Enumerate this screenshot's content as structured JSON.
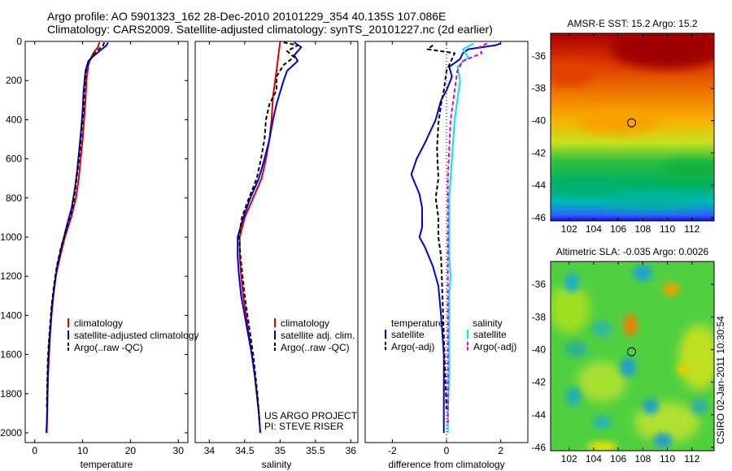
{
  "header": {
    "title_line1": "Argo profile: AO 5901323_162 28-Dec-2010 20101229_354 40.135S 107.086E",
    "title_line2": "Climatology: CARS2009. Satellite-adjusted climatology: synTS_20101227.nc (2d earlier)"
  },
  "side_label": "CSIRO 02-Jan-2011 10:30:54",
  "colors": {
    "red": "#e00000",
    "blue": "#0000e0",
    "black": "#000000",
    "cyan": "#00e8e8",
    "magenta": "#e000e0"
  },
  "chart_data": [
    {
      "type": "line",
      "id": "temperature",
      "xlabel": "temperature",
      "xlim": [
        -2,
        32
      ],
      "xticks": [
        0,
        10,
        20,
        30
      ],
      "ylim": [
        2050,
        0
      ],
      "yticks": [
        0,
        200,
        400,
        600,
        800,
        1000,
        1200,
        1400,
        1600,
        1800,
        2000
      ],
      "legend": [
        "climatology",
        "satellite-adjusted climatology",
        "Argo(..raw -QC)"
      ],
      "series": [
        {
          "name": "climatology",
          "color": "red",
          "dash": "",
          "points": [
            [
              13.5,
              5
            ],
            [
              13.2,
              30
            ],
            [
              12.5,
              50
            ],
            [
              11.8,
              80
            ],
            [
              11.2,
              120
            ],
            [
              10.8,
              200
            ],
            [
              10.6,
              300
            ],
            [
              10.3,
              400
            ],
            [
              10.0,
              500
            ],
            [
              9.6,
              600
            ],
            [
              9.2,
              700
            ],
            [
              8.6,
              800
            ],
            [
              7.6,
              900
            ],
            [
              6.3,
              1000
            ],
            [
              5.3,
              1100
            ],
            [
              4.4,
              1200
            ],
            [
              3.9,
              1300
            ],
            [
              3.5,
              1400
            ],
            [
              3.2,
              1500
            ],
            [
              3.0,
              1600
            ],
            [
              2.8,
              1700
            ],
            [
              2.7,
              1800
            ],
            [
              2.6,
              1900
            ],
            [
              2.5,
              2000
            ]
          ]
        },
        {
          "name": "satellite-adjusted climatology",
          "color": "blue",
          "dash": "",
          "points": [
            [
              15.3,
              5
            ],
            [
              15.0,
              20
            ],
            [
              14.0,
              40
            ],
            [
              12.5,
              70
            ],
            [
              11.2,
              100
            ],
            [
              10.6,
              150
            ],
            [
              10.2,
              250
            ],
            [
              10.0,
              350
            ],
            [
              9.7,
              450
            ],
            [
              9.3,
              550
            ],
            [
              8.9,
              650
            ],
            [
              8.4,
              750
            ],
            [
              7.7,
              850
            ],
            [
              6.6,
              950
            ],
            [
              5.6,
              1050
            ],
            [
              4.7,
              1150
            ],
            [
              4.1,
              1250
            ],
            [
              3.6,
              1350
            ],
            [
              3.3,
              1450
            ],
            [
              3.0,
              1550
            ],
            [
              2.8,
              1650
            ],
            [
              2.7,
              1750
            ],
            [
              2.6,
              1850
            ],
            [
              2.5,
              1950
            ],
            [
              2.4,
              2000
            ]
          ]
        },
        {
          "name": "Argo(..raw -QC)",
          "color": "black",
          "dash": "5,3",
          "points": [
            [
              14.5,
              5
            ],
            [
              14.3,
              20
            ],
            [
              13.4,
              40
            ],
            [
              12.2,
              70
            ],
            [
              11.4,
              100
            ],
            [
              10.7,
              150
            ],
            [
              10.4,
              250
            ],
            [
              10.2,
              350
            ],
            [
              9.8,
              450
            ],
            [
              9.5,
              550
            ],
            [
              9.0,
              650
            ],
            [
              8.5,
              750
            ],
            [
              7.9,
              850
            ],
            [
              6.8,
              950
            ],
            [
              5.5,
              1050
            ],
            [
              4.6,
              1150
            ],
            [
              4.0,
              1250
            ],
            [
              3.5,
              1350
            ],
            [
              3.2,
              1450
            ],
            [
              2.9,
              1550
            ],
            [
              2.7,
              1650
            ],
            [
              2.6,
              1750
            ],
            [
              2.5,
              1880
            ]
          ]
        }
      ]
    },
    {
      "type": "line",
      "id": "salinity",
      "xlabel": "salinity",
      "xlim": [
        33.8,
        36.1
      ],
      "xticks": [
        34,
        34.5,
        35,
        35.5,
        36
      ],
      "ylim": [
        2050,
        0
      ],
      "yticks": [],
      "legend": [
        "climatology",
        "satellite adj. clim.",
        "Argo(..raw -QC)"
      ],
      "annotation": [
        "US ARGO PROJECT",
        "PI: STEVE RISER"
      ],
      "series": [
        {
          "name": "climatology",
          "color": "red",
          "dash": "",
          "points": [
            [
              35.0,
              5
            ],
            [
              34.98,
              60
            ],
            [
              34.95,
              150
            ],
            [
              34.9,
              280
            ],
            [
              34.88,
              400
            ],
            [
              34.85,
              500
            ],
            [
              34.8,
              600
            ],
            [
              34.74,
              700
            ],
            [
              34.62,
              800
            ],
            [
              34.5,
              900
            ],
            [
              34.43,
              1000
            ],
            [
              34.43,
              1100
            ],
            [
              34.45,
              1200
            ],
            [
              34.48,
              1300
            ],
            [
              34.52,
              1400
            ],
            [
              34.56,
              1500
            ],
            [
              34.6,
              1600
            ],
            [
              34.64,
              1700
            ],
            [
              34.67,
              1800
            ],
            [
              34.7,
              1900
            ],
            [
              34.72,
              2000
            ]
          ]
        },
        {
          "name": "satellite adj. clim.",
          "color": "blue",
          "dash": "",
          "points": [
            [
              35.2,
              5
            ],
            [
              35.3,
              30
            ],
            [
              35.2,
              70
            ],
            [
              35.25,
              100
            ],
            [
              35.1,
              150
            ],
            [
              35.05,
              200
            ],
            [
              35.0,
              260
            ],
            [
              34.95,
              320
            ],
            [
              34.9,
              400
            ],
            [
              34.85,
              500
            ],
            [
              34.78,
              600
            ],
            [
              34.7,
              700
            ],
            [
              34.58,
              800
            ],
            [
              34.48,
              900
            ],
            [
              34.4,
              1000
            ],
            [
              34.4,
              1100
            ],
            [
              34.42,
              1200
            ],
            [
              34.45,
              1300
            ],
            [
              34.5,
              1400
            ],
            [
              34.55,
              1500
            ],
            [
              34.6,
              1600
            ],
            [
              34.64,
              1700
            ],
            [
              34.67,
              1800
            ],
            [
              34.7,
              1900
            ],
            [
              34.72,
              2000
            ]
          ]
        },
        {
          "name": "Argo(..raw -QC)",
          "color": "black",
          "dash": "5,3",
          "points": [
            [
              35.05,
              5
            ],
            [
              35.25,
              20
            ],
            [
              35.1,
              50
            ],
            [
              35.2,
              80
            ],
            [
              35.05,
              120
            ],
            [
              34.95,
              180
            ],
            [
              34.95,
              250
            ],
            [
              34.85,
              320
            ],
            [
              34.8,
              400
            ],
            [
              34.78,
              500
            ],
            [
              34.73,
              600
            ],
            [
              34.67,
              700
            ],
            [
              34.56,
              800
            ],
            [
              34.46,
              900
            ],
            [
              34.42,
              1000
            ],
            [
              34.44,
              1100
            ],
            [
              34.47,
              1200
            ],
            [
              34.5,
              1300
            ],
            [
              34.54,
              1400
            ],
            [
              34.58,
              1500
            ],
            [
              34.62,
              1600
            ],
            [
              34.65,
              1700
            ],
            [
              34.68,
              1800
            ],
            [
              34.7,
              1900
            ],
            [
              34.71,
              1950
            ]
          ]
        }
      ]
    },
    {
      "type": "line",
      "id": "difference",
      "xlabel": "difference from climatology",
      "xlim": [
        -3,
        3
      ],
      "xticks": [
        -2,
        0,
        2
      ],
      "ylim": [
        2050,
        0
      ],
      "yticks": [],
      "zero_line": true,
      "legend": [
        "temperature",
        "satellite",
        "Argo(-adj)",
        "salinity",
        "satellite",
        "Argo(-adj)"
      ],
      "series": [
        {
          "name": "satellite",
          "group": "temperature",
          "color": "blue",
          "dash": "",
          "points": [
            [
              2.0,
              10
            ],
            [
              1.8,
              20
            ],
            [
              0.8,
              40
            ],
            [
              0.6,
              60
            ],
            [
              0.5,
              90
            ],
            [
              0.1,
              130
            ],
            [
              0.2,
              180
            ],
            [
              0.0,
              250
            ],
            [
              -0.2,
              300
            ],
            [
              -0.3,
              350
            ],
            [
              -0.4,
              400
            ],
            [
              -0.6,
              460
            ],
            [
              -0.8,
              520
            ],
            [
              -1.1,
              600
            ],
            [
              -1.3,
              680
            ],
            [
              -1.0,
              780
            ],
            [
              -0.9,
              850
            ],
            [
              -0.9,
              950
            ],
            [
              -1.0,
              1000
            ],
            [
              -0.8,
              1050
            ],
            [
              -0.5,
              1150
            ],
            [
              -0.3,
              1250
            ],
            [
              -0.2,
              1400
            ],
            [
              -0.1,
              1600
            ],
            [
              -0.1,
              2000
            ]
          ]
        },
        {
          "name": "Argo(-adj)",
          "group": "temperature",
          "color": "black",
          "dash": "5,3",
          "points": [
            [
              -0.5,
              20
            ],
            [
              -0.7,
              40
            ],
            [
              0.3,
              60
            ],
            [
              0.2,
              90
            ],
            [
              0.0,
              150
            ],
            [
              -0.1,
              250
            ],
            [
              -0.2,
              320
            ],
            [
              -0.3,
              420
            ],
            [
              -0.35,
              550
            ],
            [
              -0.3,
              700
            ],
            [
              -0.4,
              800
            ],
            [
              -0.3,
              900
            ],
            [
              -0.3,
              1000
            ],
            [
              -0.2,
              1100
            ],
            [
              -0.15,
              1300
            ],
            [
              -0.1,
              1500
            ],
            [
              -0.05,
              1700
            ],
            [
              0.0,
              1880
            ]
          ]
        },
        {
          "name": "satellite",
          "group": "salinity",
          "color": "cyan",
          "dash": "",
          "points": [
            [
              1.0,
              10
            ],
            [
              0.6,
              40
            ],
            [
              0.8,
              80
            ],
            [
              0.4,
              130
            ],
            [
              0.5,
              200
            ],
            [
              0.4,
              300
            ],
            [
              0.3,
              400
            ],
            [
              0.25,
              500
            ],
            [
              0.2,
              600
            ],
            [
              0.15,
              700
            ],
            [
              0.1,
              800
            ],
            [
              0.1,
              900
            ],
            [
              0.1,
              1000
            ],
            [
              0.1,
              1100
            ],
            [
              0.15,
              1200
            ],
            [
              0.1,
              1300
            ],
            [
              0.1,
              1500
            ],
            [
              0.1,
              1700
            ],
            [
              0.05,
              1900
            ],
            [
              0.05,
              2000
            ]
          ]
        },
        {
          "name": "Argo(-adj)",
          "group": "salinity",
          "color": "magenta",
          "dash": "5,3",
          "points": [
            [
              1.5,
              10
            ],
            [
              1.2,
              30
            ],
            [
              1.3,
              60
            ],
            [
              0.6,
              100
            ],
            [
              0.4,
              150
            ],
            [
              0.3,
              250
            ],
            [
              0.15,
              400
            ],
            [
              0.1,
              550
            ],
            [
              0.05,
              700
            ],
            [
              0.05,
              850
            ],
            [
              0.05,
              1000
            ],
            [
              0.05,
              1200
            ],
            [
              0.05,
              1500
            ],
            [
              0.05,
              1800
            ],
            [
              0.05,
              1950
            ]
          ]
        }
      ]
    },
    {
      "type": "heatmap",
      "id": "sst",
      "title": "AMSR-E SST: 15.2 Argo: 15.2",
      "xlim": [
        100.5,
        113.8
      ],
      "ylim": [
        -46.2,
        -34.6
      ],
      "xticks": [
        102,
        104,
        106,
        108,
        110,
        112
      ],
      "yticks": [
        -36,
        -38,
        -40,
        -42,
        -44,
        -46
      ],
      "marker": [
        107.086,
        -40.135
      ]
    },
    {
      "type": "heatmap",
      "id": "sla",
      "title": "Altimetric SLA: -0.035 Argo: 0.0026",
      "xlim": [
        100.5,
        113.8
      ],
      "ylim": [
        -46.2,
        -34.6
      ],
      "xticks": [
        102,
        104,
        106,
        108,
        110,
        112
      ],
      "yticks": [
        -36,
        -38,
        -40,
        -42,
        -44,
        -46
      ],
      "marker": [
        107.086,
        -40.135
      ]
    }
  ]
}
